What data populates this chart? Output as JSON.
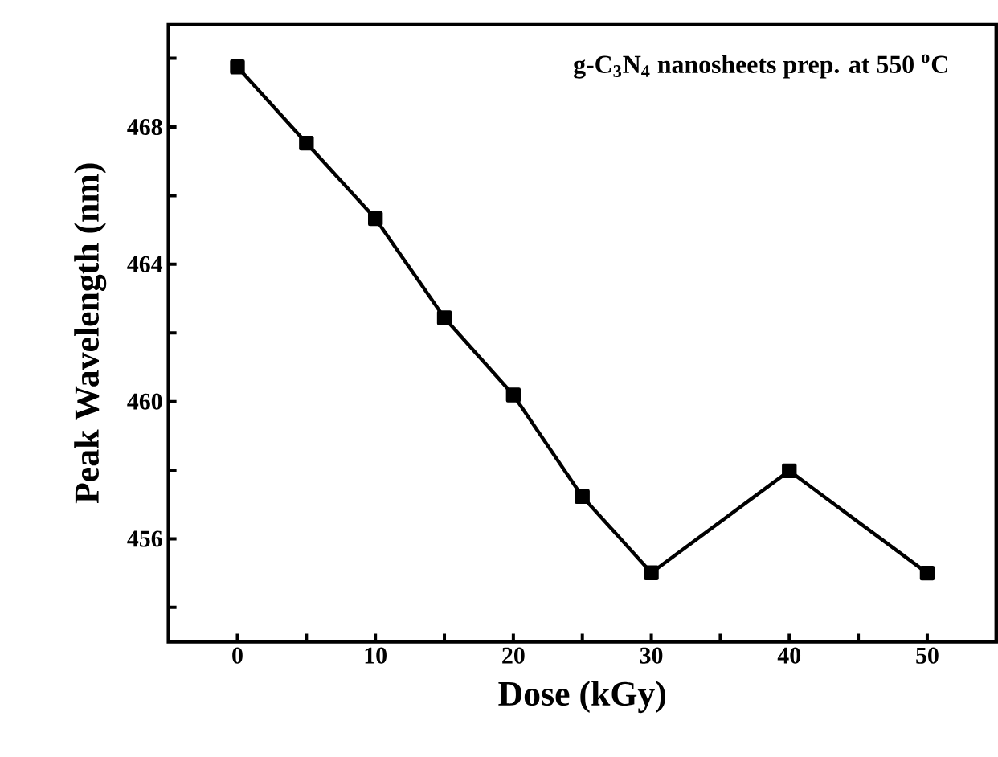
{
  "chart_data": {
    "type": "line",
    "xlabel": "Dose (kGy)",
    "ylabel": "Peak Wavelength (nm)",
    "annotations": [
      "**g-C$_{3}$N$_{4}$ nanosheets prep. at 550 $^{o}$C**"
    ],
    "x": [
      0,
      5,
      10,
      15,
      20,
      25,
      30,
      40,
      50
    ],
    "series": [
      {
        "color": "#000000",
        "values": [
          469.75,
          467.53,
          465.33,
          462.44,
          460.19,
          457.23,
          455.01,
          457.98,
          455.0
        ]
      }
    ],
    "xlim": [
      -5,
      55
    ],
    "ylim": [
      453,
      471
    ],
    "xticks": [
      0,
      {
        "value": 5,
        "label": null
      },
      10,
      {
        "value": 15,
        "label": null
      },
      20,
      {
        "value": 25,
        "label": null
      },
      30,
      {
        "value": 35,
        "label": null
      },
      40,
      {
        "value": 45,
        "label": null
      },
      50
    ],
    "yticks": [
      {
        "value": 454,
        "label": null
      },
      456,
      {
        "value": 458,
        "label": null
      },
      460,
      {
        "value": 462,
        "label": null
      },
      464,
      {
        "value": 466,
        "label": null
      },
      468,
      {
        "value": 470,
        "label": null
      }
    ],
    "grid": false,
    "marker": "square",
    "line_style": "solid"
  }
}
